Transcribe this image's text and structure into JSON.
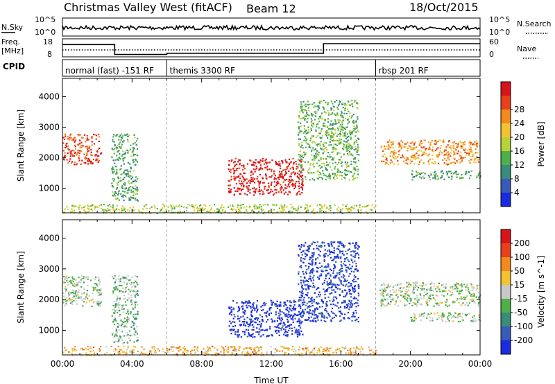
{
  "header": {
    "title": "Christmas Valley West (fitACF)",
    "beam": "Beam 12",
    "date": "18/Oct/2015"
  },
  "summary_panels": {
    "nsky": {
      "label": "N.Sky",
      "ticks_left": [
        "10^5",
        "10^0"
      ],
      "right_label": "N.Search",
      "ticks_right": [
        "10^5",
        "10^0"
      ]
    },
    "freq": {
      "label_line1": "Freq.",
      "label_line2": "[MHz]",
      "ticks_left": [
        "18",
        "8"
      ],
      "right_label": "Nave",
      "ticks_right": [
        "60",
        "0"
      ],
      "freq_steps": [
        {
          "start": 0.0,
          "end": 3.0,
          "value": 14.8
        },
        {
          "start": 3.0,
          "end": 6.0,
          "value": 9.3
        },
        {
          "start": 6.0,
          "end": 15.0,
          "value": 10.0
        },
        {
          "start": 15.0,
          "end": 24.0,
          "value": 15.3
        }
      ]
    },
    "cpid": {
      "label": "CPID",
      "segments": [
        {
          "start": 0.0,
          "end": 6.0,
          "name": "normal (fast) -151 RF"
        },
        {
          "start": 6.0,
          "end": 18.0,
          "name": "themis 3300 RF"
        },
        {
          "start": 18.0,
          "end": 24.0,
          "name": "rbsp 201 RF"
        }
      ]
    }
  },
  "chart_data": [
    {
      "type": "heatmap",
      "name": "Power",
      "xlabel": "",
      "ylabel": "Slant Range [km]",
      "xlim": [
        0,
        24
      ],
      "ylim": [
        200,
        4600
      ],
      "y_ticks": [
        "1000",
        "2000",
        "3000",
        "4000"
      ],
      "colorbar": {
        "label": "Power [dB]",
        "ticks": [
          "4",
          "8",
          "12",
          "16",
          "20",
          "24",
          "28"
        ],
        "colors": [
          "#1a2ce0",
          "#3a5ab8",
          "#3a8b7a",
          "#4fb04a",
          "#b8d23a",
          "#f2c230",
          "#f28a1e",
          "#e8401a",
          "#d8141a"
        ]
      },
      "regions": [
        {
          "x": [
            0.0,
            2.2
          ],
          "y": [
            1800,
            2800
          ],
          "level": 0.85
        },
        {
          "x": [
            2.8,
            4.3
          ],
          "y": [
            600,
            2800
          ],
          "level": 0.35
        },
        {
          "x": [
            9.5,
            13.8
          ],
          "y": [
            800,
            2000
          ],
          "level": 0.95
        },
        {
          "x": [
            13.5,
            17.0
          ],
          "y": [
            1300,
            3900
          ],
          "level": 0.4
        },
        {
          "x": [
            18.2,
            24.0
          ],
          "y": [
            1800,
            2600
          ],
          "level": 0.7
        },
        {
          "x": [
            20.0,
            24.0
          ],
          "y": [
            1300,
            1600
          ],
          "level": 0.35
        },
        {
          "x": [
            0.0,
            18.0
          ],
          "y": [
            200,
            500
          ],
          "level": 0.5
        }
      ]
    },
    {
      "type": "heatmap",
      "name": "Velocity",
      "xlabel": "Time UT",
      "ylabel": "Slant Range [km]",
      "xlim": [
        0,
        24
      ],
      "ylim": [
        200,
        4600
      ],
      "x_ticks": [
        "00:00",
        "04:00",
        "08:00",
        "12:00",
        "16:00",
        "20:00",
        "00:00"
      ],
      "y_ticks": [
        "1000",
        "2000",
        "3000",
        "4000"
      ],
      "colorbar": {
        "label": "Velocity [m s^-1]",
        "ticks": [
          "200",
          "100",
          "50",
          "15",
          "-15",
          "-50",
          "-100",
          "-200"
        ],
        "colors": [
          "#1a2ce0",
          "#3a5ab8",
          "#3a8b7a",
          "#4fb04a",
          "#c8c8c8",
          "#f2c230",
          "#f28a1e",
          "#e8401a",
          "#d8141a"
        ]
      },
      "regions": [
        {
          "x": [
            0.0,
            2.2
          ],
          "y": [
            1800,
            2800
          ],
          "level": 0.45
        },
        {
          "x": [
            2.8,
            4.3
          ],
          "y": [
            600,
            2800
          ],
          "level": 0.4
        },
        {
          "x": [
            9.5,
            13.8
          ],
          "y": [
            800,
            2000
          ],
          "level": 0.05
        },
        {
          "x": [
            13.5,
            17.0
          ],
          "y": [
            1300,
            3900
          ],
          "level": 0.1
        },
        {
          "x": [
            18.2,
            24.0
          ],
          "y": [
            1800,
            2600
          ],
          "level": 0.45
        },
        {
          "x": [
            20.0,
            24.0
          ],
          "y": [
            1300,
            1600
          ],
          "level": 0.45
        },
        {
          "x": [
            0.0,
            18.0
          ],
          "y": [
            200,
            500
          ],
          "level": 0.65
        }
      ]
    }
  ]
}
